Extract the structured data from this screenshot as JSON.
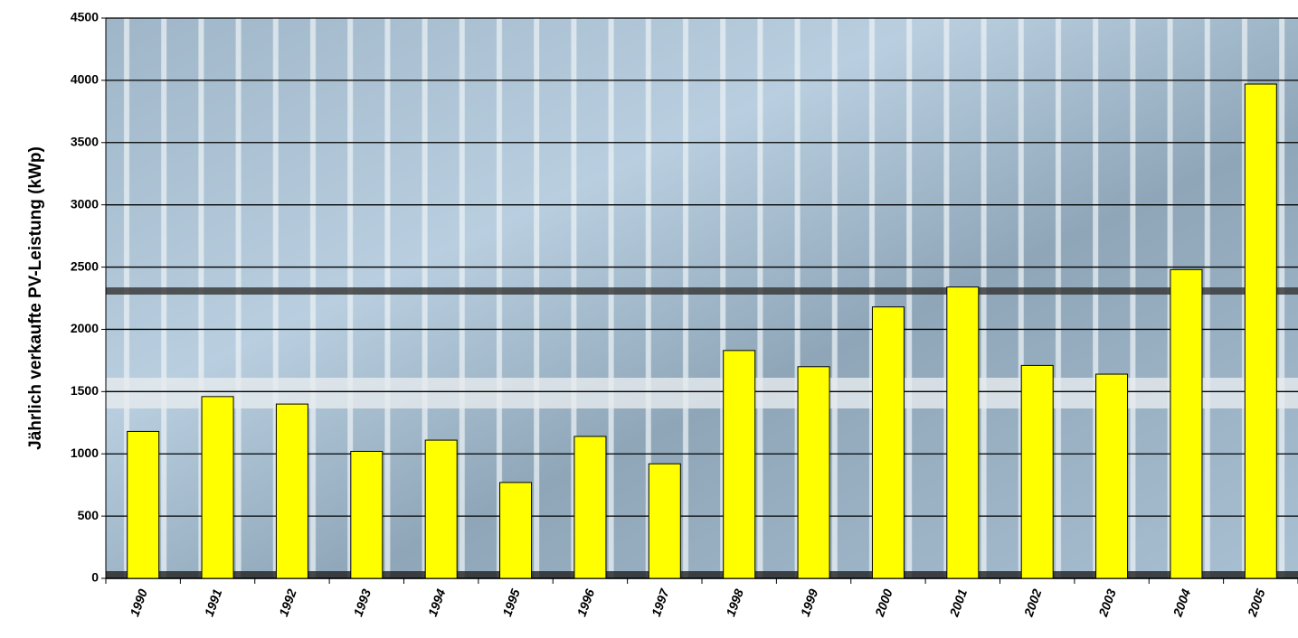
{
  "chart_data": {
    "type": "bar",
    "y_label": "Jährlich verkaufte PV-Leistung (kWp)",
    "categories": [
      "1990",
      "1991",
      "1992",
      "1993",
      "1994",
      "1995",
      "1996",
      "1997",
      "1998",
      "1999",
      "2000",
      "2001",
      "2002",
      "2003",
      "2004",
      "2005"
    ],
    "values": [
      1180,
      1460,
      1400,
      1020,
      1110,
      770,
      1140,
      920,
      1830,
      1700,
      2180,
      2340,
      1710,
      1640,
      2480,
      3970
    ],
    "color": "#ffff00",
    "ylim": [
      0,
      4500
    ],
    "yticks": [
      0,
      500,
      1000,
      1500,
      2000,
      2500,
      3000,
      3500,
      4000,
      4500
    ],
    "grid": true
  }
}
